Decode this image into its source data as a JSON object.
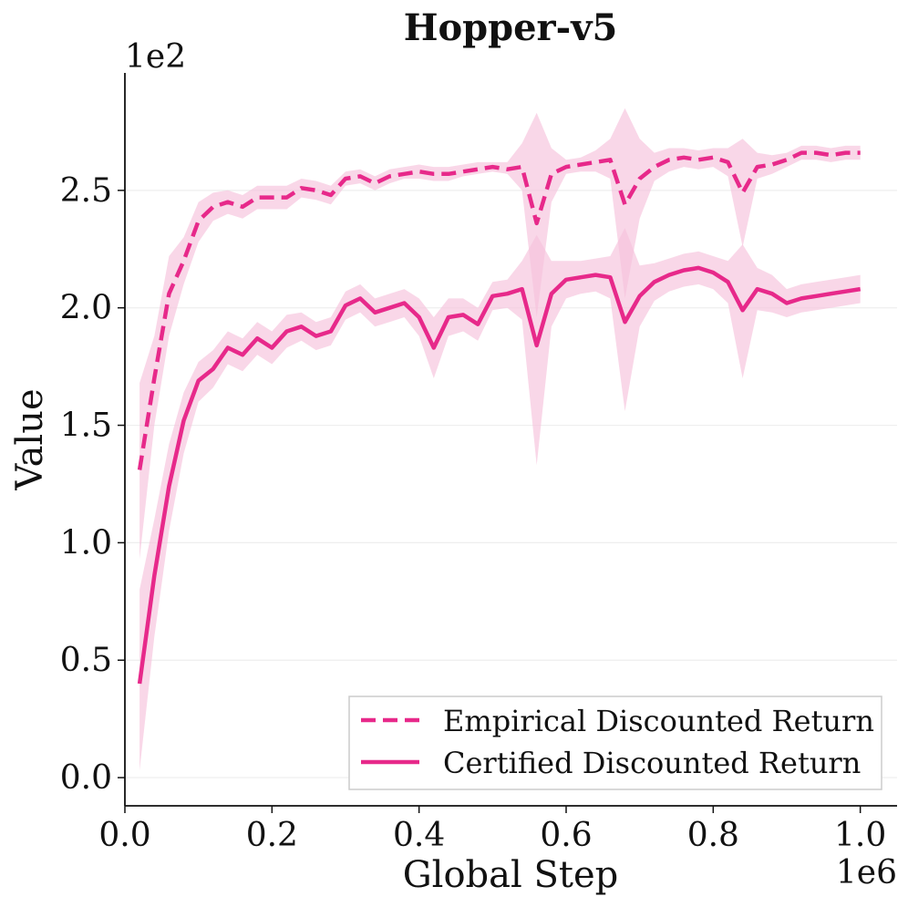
{
  "chart_data": {
    "type": "line",
    "title": "Hopper-v5",
    "xlabel": "Global Step",
    "ylabel": "Value",
    "x_scale_label": "1e6",
    "y_scale_label": "1e2",
    "xlim": [
      0.0,
      1.05
    ],
    "ylim": [
      -0.12,
      3.0
    ],
    "x_ticks": [
      "0.0",
      "0.2",
      "0.4",
      "0.6",
      "0.8",
      "1.0"
    ],
    "y_ticks": [
      "0.0",
      "0.5",
      "1.0",
      "1.5",
      "2.0",
      "2.5"
    ],
    "grid": "horizontal",
    "legend_position": "lower-right",
    "color": "#e7298a",
    "band_color": "#f6c1dc",
    "x": [
      0.02,
      0.04,
      0.06,
      0.08,
      0.1,
      0.12,
      0.14,
      0.16,
      0.18,
      0.2,
      0.22,
      0.24,
      0.26,
      0.28,
      0.3,
      0.32,
      0.34,
      0.36,
      0.38,
      0.4,
      0.42,
      0.44,
      0.46,
      0.48,
      0.5,
      0.52,
      0.54,
      0.56,
      0.58,
      0.6,
      0.62,
      0.64,
      0.66,
      0.68,
      0.7,
      0.72,
      0.74,
      0.76,
      0.78,
      0.8,
      0.82,
      0.84,
      0.86,
      0.88,
      0.9,
      0.92,
      0.94,
      0.96,
      0.98,
      1.0
    ],
    "series": [
      {
        "name": "Empirical Discounted Return",
        "style": "dashed",
        "values": [
          1.31,
          1.7,
          2.06,
          2.2,
          2.37,
          2.43,
          2.45,
          2.43,
          2.47,
          2.47,
          2.47,
          2.51,
          2.5,
          2.48,
          2.55,
          2.56,
          2.53,
          2.56,
          2.57,
          2.58,
          2.57,
          2.57,
          2.58,
          2.59,
          2.6,
          2.59,
          2.6,
          2.36,
          2.57,
          2.6,
          2.61,
          2.62,
          2.63,
          2.44,
          2.55,
          2.6,
          2.63,
          2.64,
          2.63,
          2.64,
          2.62,
          2.49,
          2.6,
          2.61,
          2.63,
          2.66,
          2.66,
          2.65,
          2.66,
          2.66
        ],
        "lower": [
          0.93,
          1.5,
          1.88,
          2.1,
          2.28,
          2.37,
          2.4,
          2.38,
          2.42,
          2.42,
          2.42,
          2.47,
          2.46,
          2.44,
          2.52,
          2.53,
          2.5,
          2.53,
          2.55,
          2.55,
          2.54,
          2.54,
          2.56,
          2.57,
          2.58,
          2.57,
          2.5,
          1.96,
          2.45,
          2.57,
          2.58,
          2.58,
          2.55,
          2.04,
          2.38,
          2.54,
          2.58,
          2.6,
          2.59,
          2.6,
          2.56,
          2.26,
          2.55,
          2.57,
          2.6,
          2.63,
          2.63,
          2.62,
          2.63,
          2.63
        ],
        "upper": [
          1.68,
          1.88,
          2.22,
          2.3,
          2.45,
          2.49,
          2.5,
          2.48,
          2.52,
          2.52,
          2.52,
          2.55,
          2.54,
          2.52,
          2.58,
          2.59,
          2.56,
          2.59,
          2.6,
          2.61,
          2.6,
          2.6,
          2.61,
          2.62,
          2.62,
          2.62,
          2.7,
          2.83,
          2.68,
          2.63,
          2.64,
          2.67,
          2.72,
          2.85,
          2.72,
          2.66,
          2.68,
          2.68,
          2.67,
          2.68,
          2.68,
          2.72,
          2.66,
          2.65,
          2.66,
          2.69,
          2.69,
          2.68,
          2.69,
          2.69
        ]
      },
      {
        "name": "Certified Discounted Return",
        "style": "solid",
        "values": [
          0.4,
          0.86,
          1.24,
          1.52,
          1.69,
          1.74,
          1.83,
          1.8,
          1.87,
          1.83,
          1.9,
          1.92,
          1.88,
          1.9,
          2.01,
          2.04,
          1.98,
          2.0,
          2.02,
          1.96,
          1.83,
          1.96,
          1.97,
          1.93,
          2.05,
          2.06,
          2.08,
          1.84,
          2.06,
          2.12,
          2.13,
          2.14,
          2.13,
          1.94,
          2.05,
          2.11,
          2.14,
          2.16,
          2.17,
          2.15,
          2.11,
          1.99,
          2.08,
          2.06,
          2.02,
          2.04,
          2.05,
          2.06,
          2.07,
          2.08
        ],
        "lower": [
          0.03,
          0.6,
          1.05,
          1.38,
          1.6,
          1.66,
          1.76,
          1.73,
          1.8,
          1.76,
          1.83,
          1.86,
          1.82,
          1.84,
          1.95,
          1.98,
          1.92,
          1.94,
          1.96,
          1.88,
          1.7,
          1.88,
          1.9,
          1.86,
          1.99,
          2.0,
          1.95,
          1.33,
          1.92,
          2.04,
          2.06,
          2.07,
          2.04,
          1.56,
          1.92,
          2.03,
          2.07,
          2.09,
          2.1,
          2.08,
          2.02,
          1.7,
          1.99,
          1.98,
          1.96,
          1.98,
          1.99,
          2.0,
          2.01,
          2.02
        ],
        "upper": [
          0.8,
          1.1,
          1.42,
          1.64,
          1.77,
          1.82,
          1.9,
          1.87,
          1.94,
          1.9,
          1.97,
          1.98,
          1.94,
          1.96,
          2.07,
          2.1,
          2.04,
          2.06,
          2.08,
          2.04,
          1.96,
          2.04,
          2.04,
          2.0,
          2.11,
          2.12,
          2.2,
          2.31,
          2.2,
          2.2,
          2.2,
          2.21,
          2.22,
          2.34,
          2.18,
          2.19,
          2.21,
          2.23,
          2.24,
          2.22,
          2.2,
          2.27,
          2.17,
          2.14,
          2.08,
          2.1,
          2.11,
          2.12,
          2.13,
          2.14
        ]
      }
    ]
  }
}
